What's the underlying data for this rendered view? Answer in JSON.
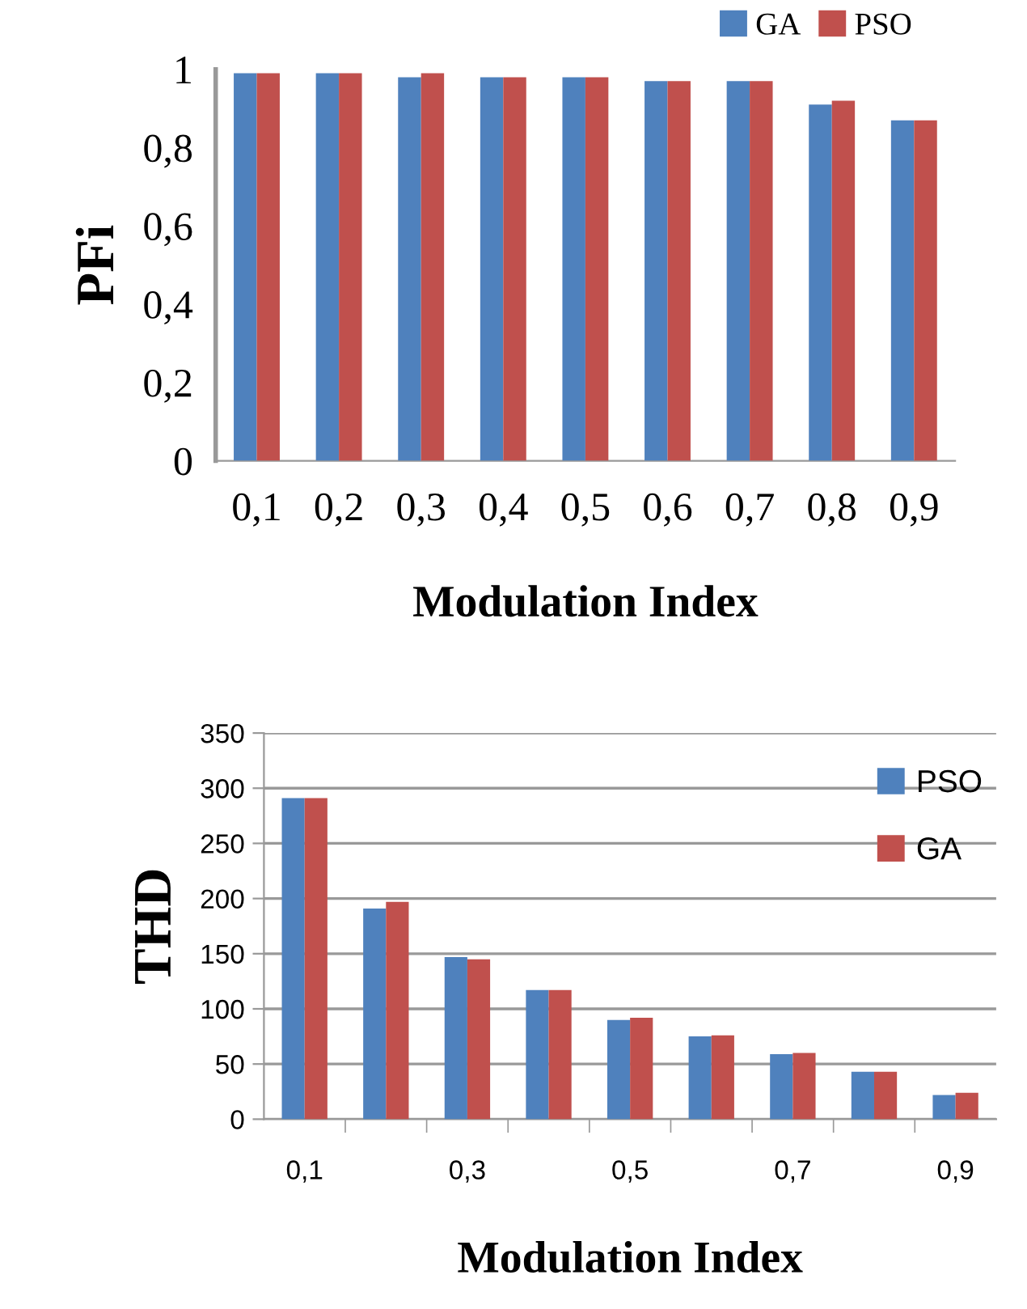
{
  "chart_data": [
    {
      "type": "bar",
      "ylabel": "PFi",
      "xlabel": "Modulation Index",
      "categories": [
        "0,1",
        "0,2",
        "0,3",
        "0,4",
        "0,5",
        "0,6",
        "0,7",
        "0,8",
        "0,9"
      ],
      "series": [
        {
          "name": "GA",
          "color": "#4f81bd",
          "values": [
            0.99,
            0.99,
            0.98,
            0.98,
            0.98,
            0.97,
            0.97,
            0.91,
            0.87
          ]
        },
        {
          "name": "PSO",
          "color": "#c0504d",
          "values": [
            0.99,
            0.99,
            0.99,
            0.98,
            0.98,
            0.97,
            0.97,
            0.92,
            0.87
          ]
        }
      ],
      "ylim": [
        0,
        1
      ],
      "yticks": [
        0,
        {
          "value": 0.2,
          "label": "0,2"
        },
        {
          "value": 0.4,
          "label": "0,4"
        },
        {
          "value": 0.6,
          "label": "0,6"
        },
        {
          "value": 0.8,
          "label": "0,8"
        },
        1
      ],
      "grid": false,
      "legend": "top right"
    },
    {
      "type": "bar",
      "ylabel": "THD",
      "xlabel": "Modulation Index",
      "categories": [
        "0,1",
        null,
        "0,3",
        null,
        "0,5",
        null,
        "0,7",
        null,
        "0,9"
      ],
      "series": [
        {
          "name": "PSO",
          "color": "#4f81bd",
          "values": [
            291,
            191,
            147,
            117,
            90,
            75,
            59,
            43,
            22
          ]
        },
        {
          "name": "GA",
          "color": "#c0504d",
          "values": [
            291,
            197,
            145,
            117,
            92,
            76,
            60,
            43,
            24
          ]
        }
      ],
      "ylim": [
        0,
        350
      ],
      "yticks": [
        0,
        50,
        100,
        150,
        200,
        250,
        300,
        350
      ],
      "grid": "y",
      "legend": "top right"
    }
  ]
}
